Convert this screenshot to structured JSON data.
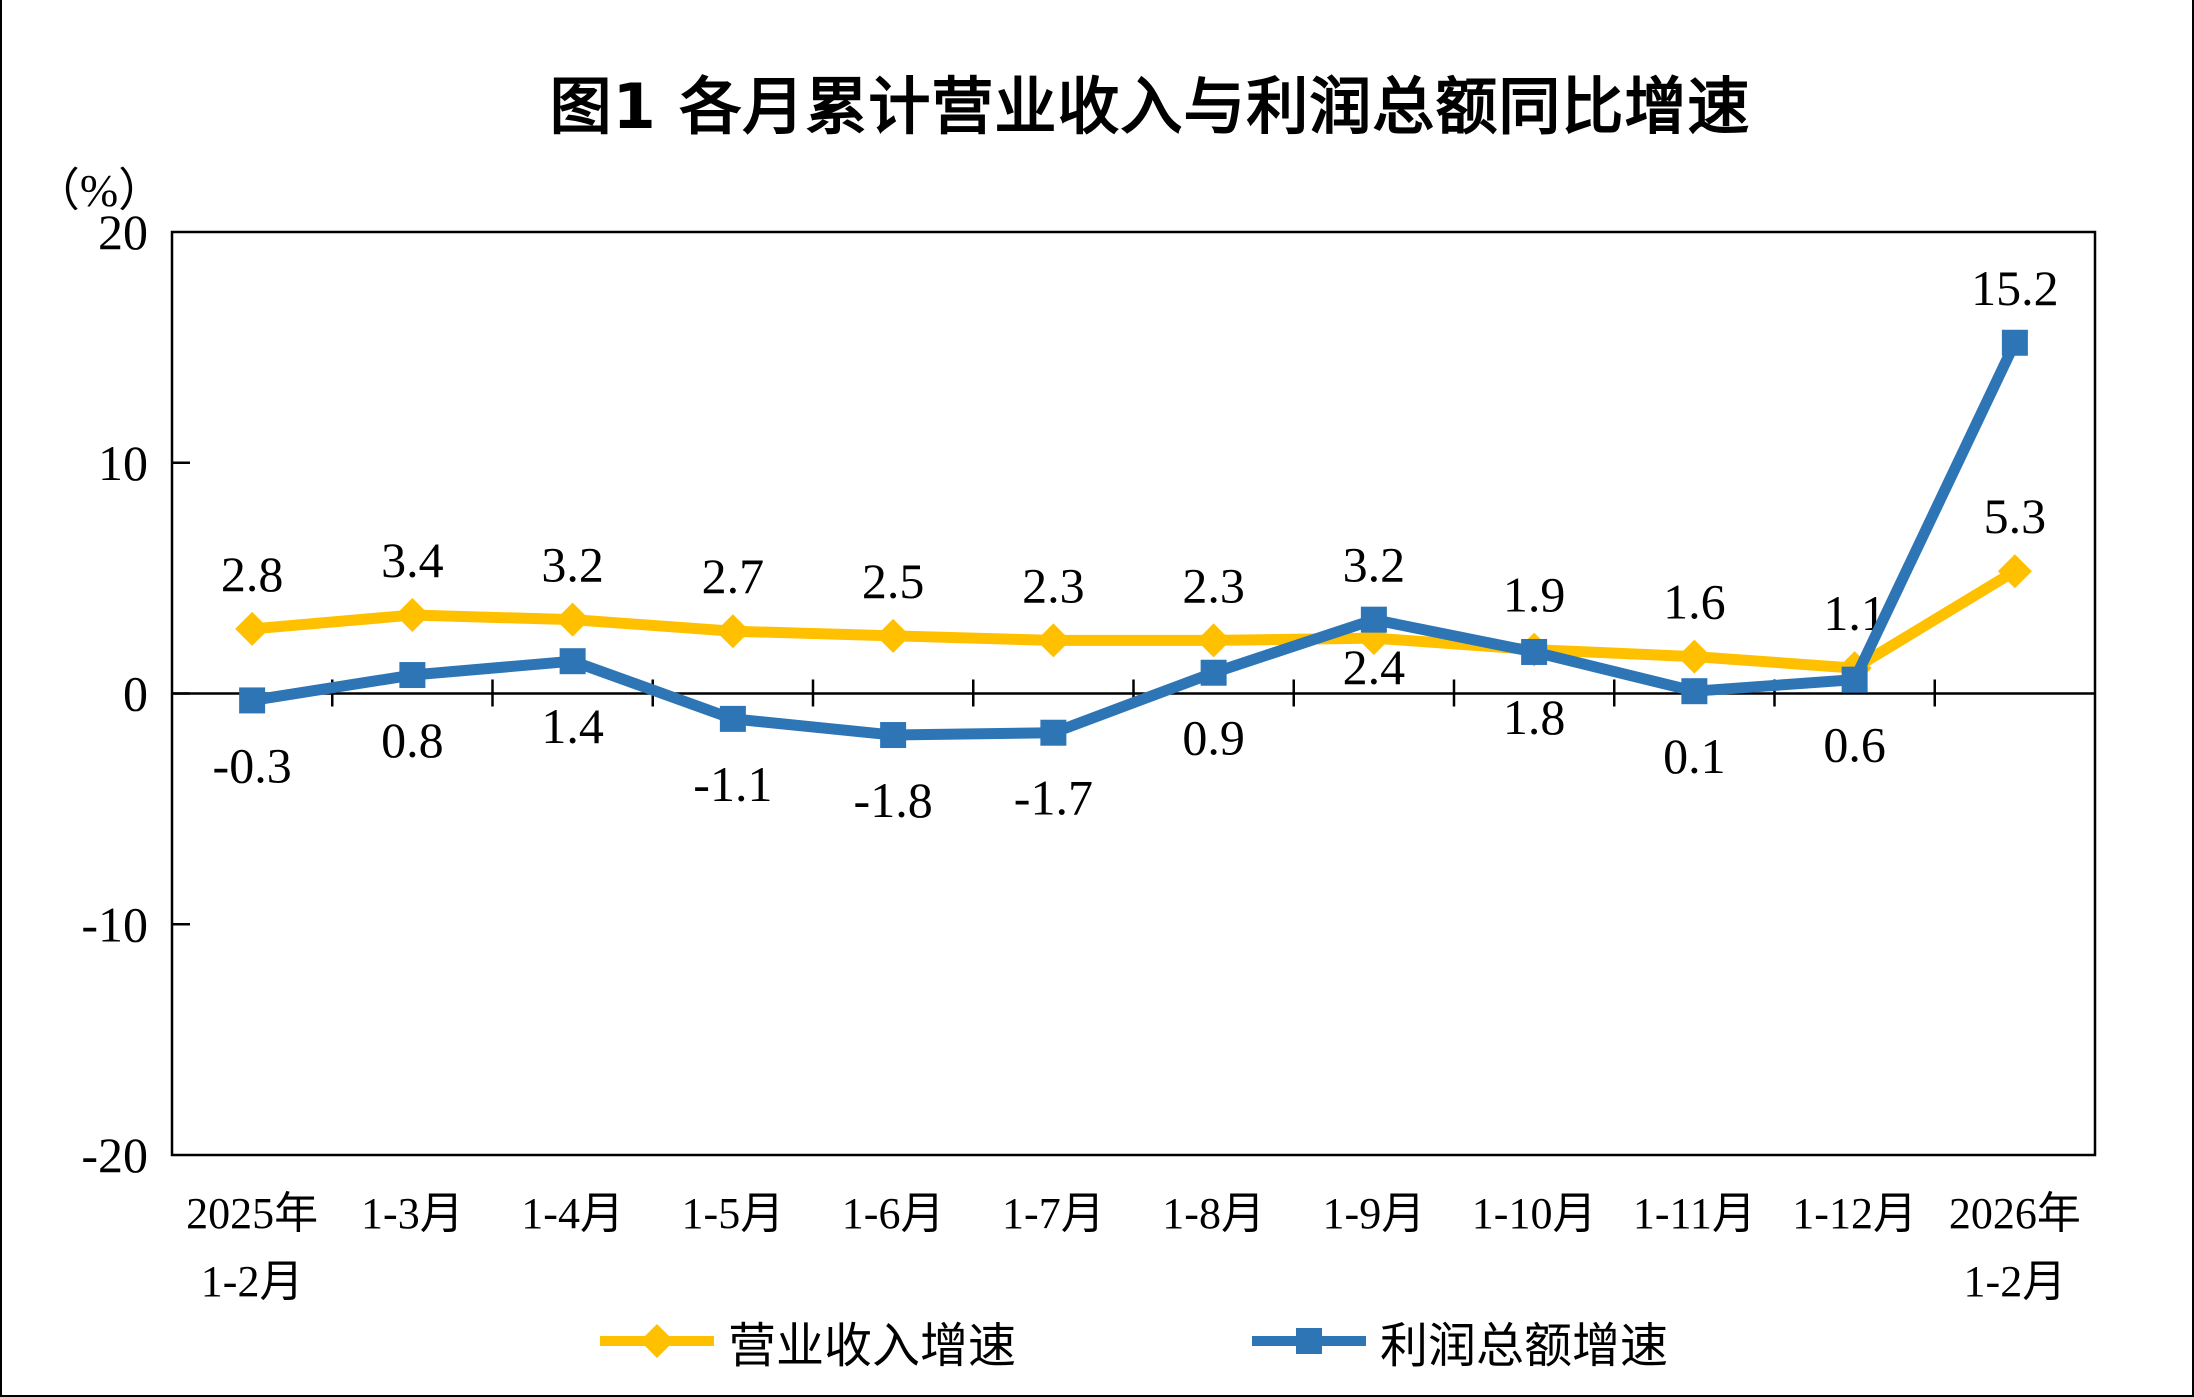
{
  "chart_data": {
    "type": "line",
    "title": "图1  各月累计营业收入与利润总额同比增速",
    "unit_label": "（%）",
    "ylim": [
      -20,
      20
    ],
    "yticks": [
      20,
      10,
      0,
      -10,
      -20
    ],
    "grid": "off",
    "legend_position": "bottom",
    "categories": [
      [
        "2025年",
        "1-2月"
      ],
      [
        "1-3月"
      ],
      [
        "1-4月"
      ],
      [
        "1-5月"
      ],
      [
        "1-6月"
      ],
      [
        "1-7月"
      ],
      [
        "1-8月"
      ],
      [
        "1-9月"
      ],
      [
        "1-10月"
      ],
      [
        "1-11月"
      ],
      [
        "1-12月"
      ],
      [
        "2026年",
        "1-2月"
      ]
    ],
    "series": [
      {
        "name": "营业收入增速",
        "color": "#FFC000",
        "marker": "diamond",
        "values": [
          2.8,
          3.4,
          3.2,
          2.7,
          2.5,
          2.3,
          2.3,
          2.4,
          1.9,
          1.6,
          1.1,
          5.3
        ],
        "label_side": [
          "above",
          "above",
          "above",
          "above",
          "above",
          "above",
          "above",
          "below-near",
          "above",
          "above",
          "above",
          "above"
        ]
      },
      {
        "name": "利润总额增速",
        "color": "#2E75B6",
        "marker": "square",
        "values": [
          -0.3,
          0.8,
          1.4,
          -1.1,
          -1.8,
          -1.7,
          0.9,
          3.2,
          1.8,
          0.1,
          0.6,
          15.2
        ],
        "label_side": [
          "below",
          "below",
          "below",
          "below",
          "below",
          "below",
          "below",
          "above",
          "below",
          "below",
          "below",
          "above"
        ]
      }
    ]
  }
}
